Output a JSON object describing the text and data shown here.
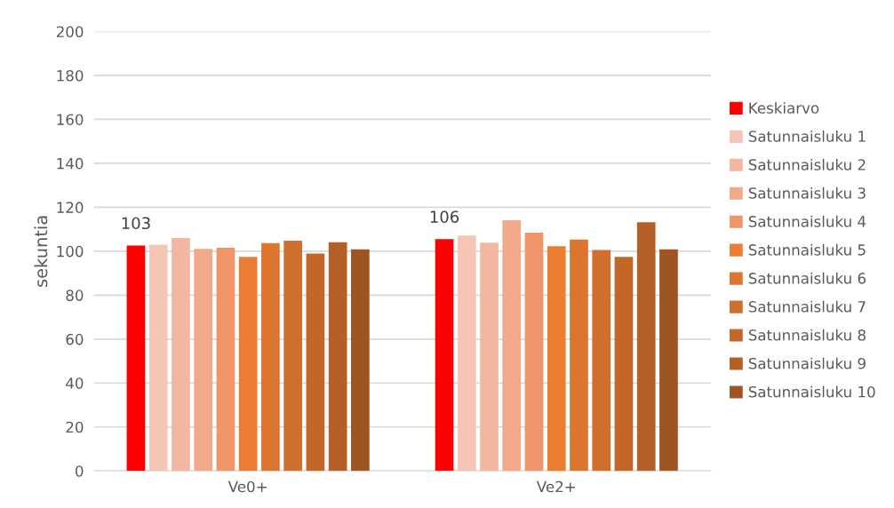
{
  "chart_data": {
    "type": "bar",
    "ylabel": "sekuntia",
    "categories": [
      "Ve0+",
      "Ve2+"
    ],
    "ylim": [
      0,
      200
    ],
    "yticks": [
      0,
      20,
      40,
      60,
      80,
      100,
      120,
      140,
      160,
      180,
      200
    ],
    "grid": "y",
    "legend": "right",
    "series": [
      {
        "name": "Keskiarvo",
        "color": "#ff0000",
        "values": [
          102.6,
          105.5
        ],
        "value_labels": [
          "103",
          "106"
        ]
      },
      {
        "name": "Satunnaisluku 1",
        "color": "#f5c6b5",
        "values": [
          103.0,
          107.1
        ]
      },
      {
        "name": "Satunnaisluku 2",
        "color": "#f3b7a1",
        "values": [
          106.0,
          103.9
        ]
      },
      {
        "name": "Satunnaisluku 3",
        "color": "#f1a98a",
        "values": [
          101.1,
          114.1
        ]
      },
      {
        "name": "Satunnaisluku 4",
        "color": "#ef9569",
        "values": [
          101.6,
          108.4
        ]
      },
      {
        "name": "Satunnaisluku 5",
        "color": "#ec7e33",
        "values": [
          97.4,
          102.3
        ]
      },
      {
        "name": "Satunnaisluku 6",
        "color": "#dd7430",
        "values": [
          103.7,
          105.3
        ]
      },
      {
        "name": "Satunnaisluku 7",
        "color": "#d06e2d",
        "values": [
          104.8,
          100.5
        ]
      },
      {
        "name": "Satunnaisluku 8",
        "color": "#c36729",
        "values": [
          98.9,
          97.4
        ]
      },
      {
        "name": "Satunnaisluku 9",
        "color": "#b45f25",
        "values": [
          104.1,
          113.2
        ]
      },
      {
        "name": "Satunnaisluku 10",
        "color": "#a05421",
        "values": [
          100.8,
          100.8
        ]
      }
    ]
  }
}
